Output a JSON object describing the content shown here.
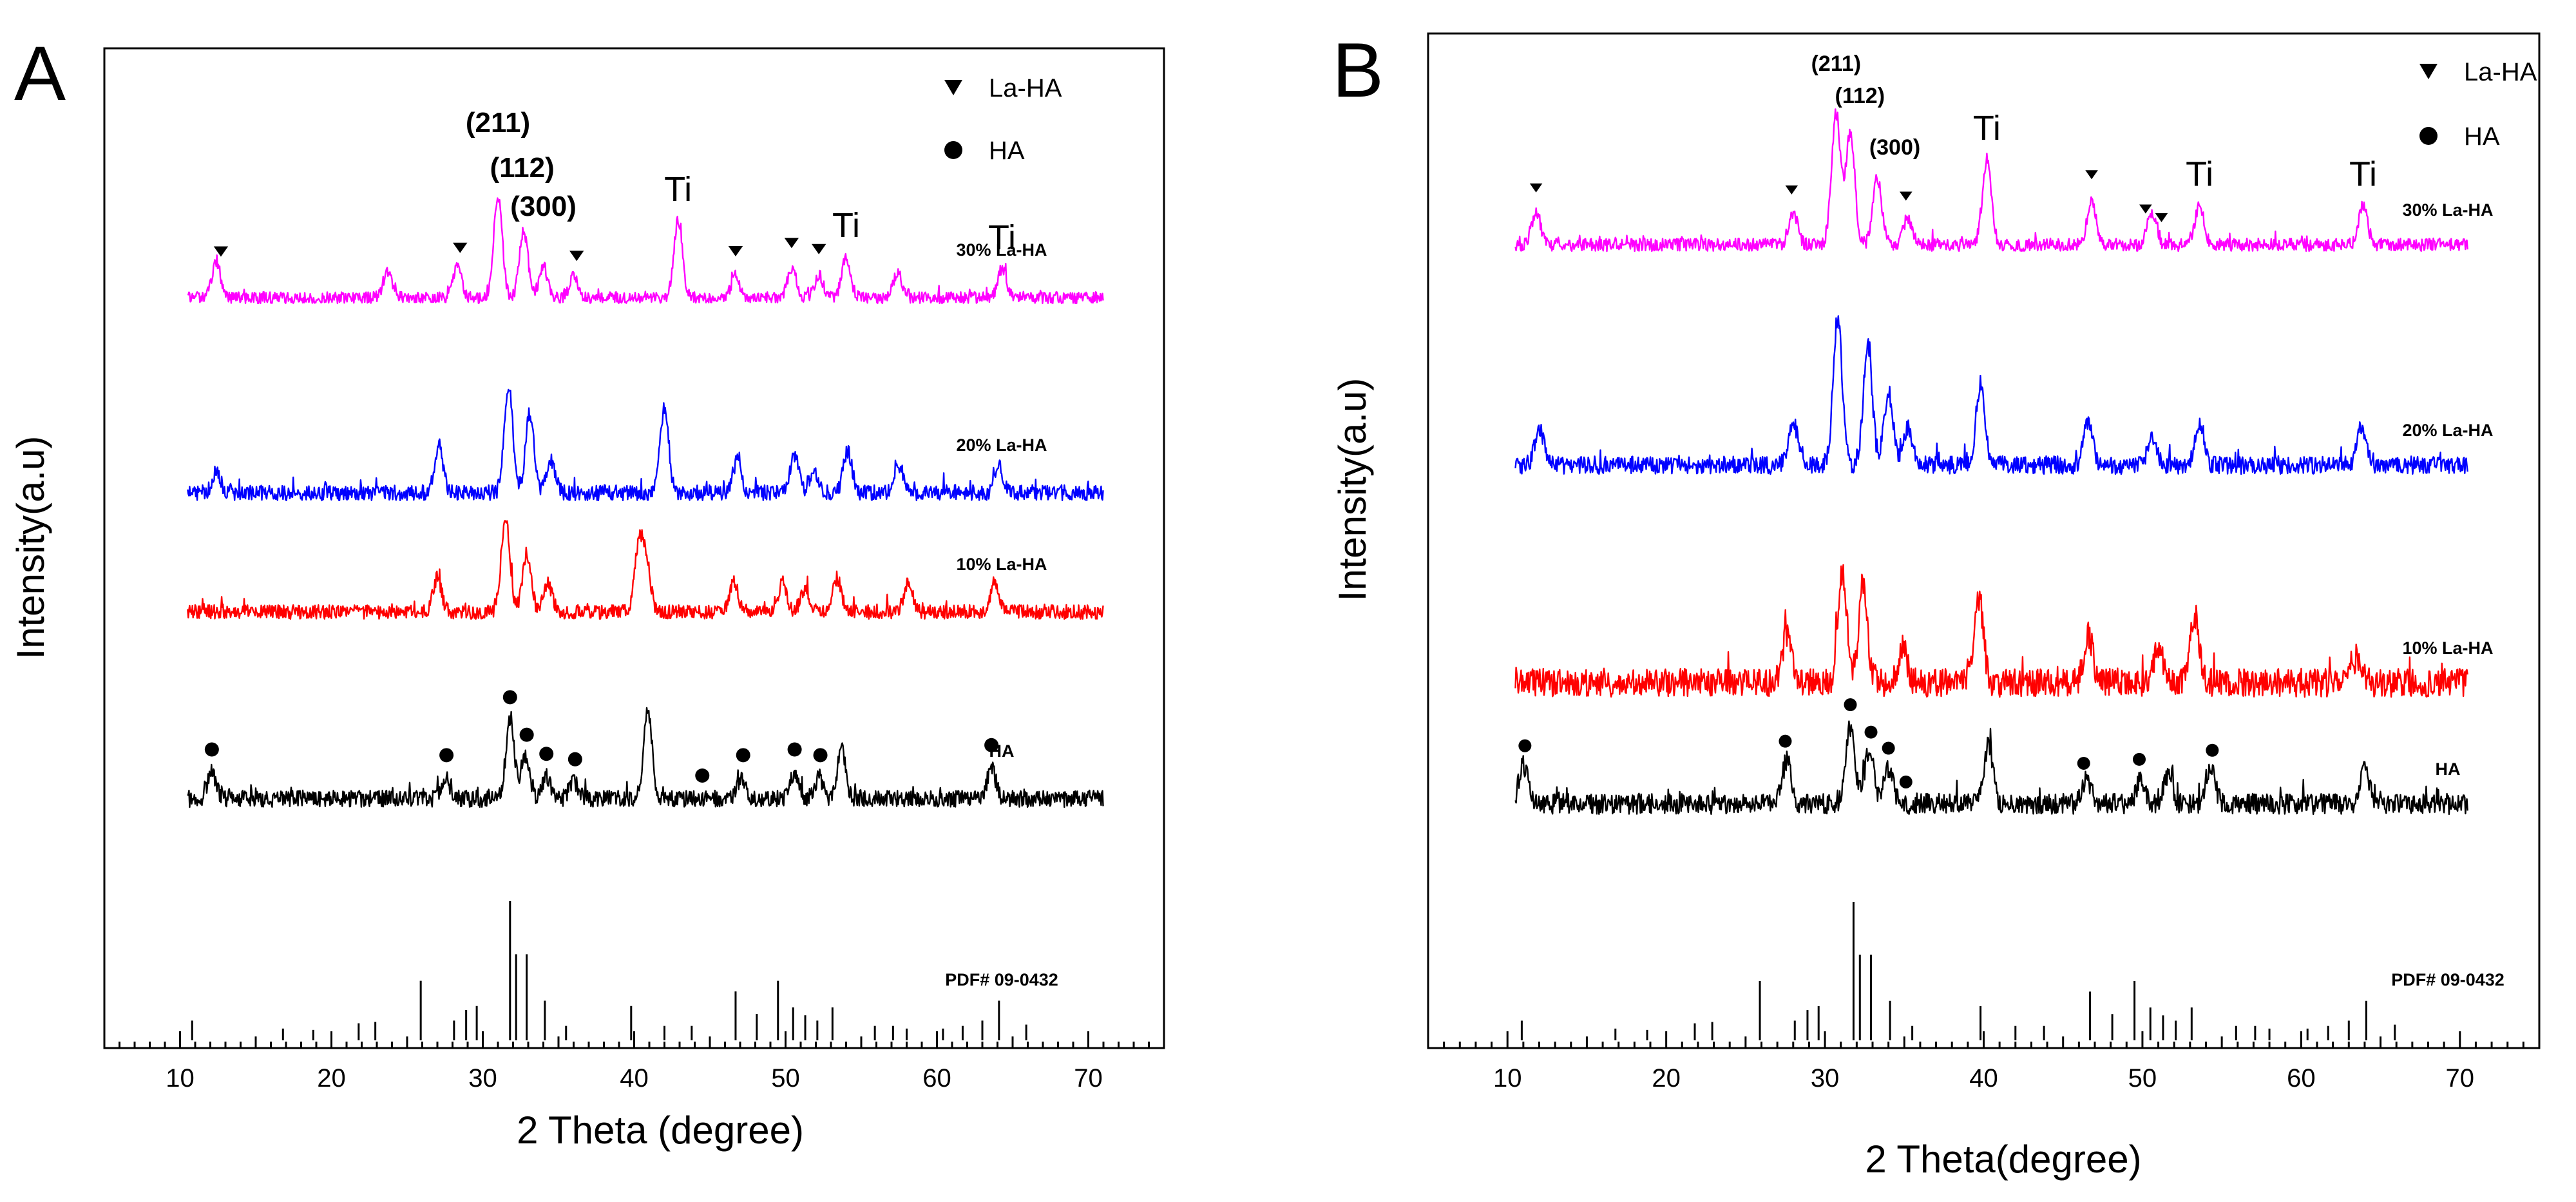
{
  "chart_data": [
    {
      "type": "line",
      "panel": "A",
      "xlabel": "2 Theta (degree)",
      "ylabel": "Intensity(a.u)",
      "xlim": [
        5,
        75
      ],
      "xticks": [
        10,
        20,
        30,
        40,
        50,
        60,
        70
      ],
      "legend": [
        {
          "marker": "triangle",
          "label": "La-HA"
        },
        {
          "marker": "circle",
          "label": "HA"
        }
      ],
      "series": [
        {
          "name": "30% La-HA",
          "color": "#ff00ff",
          "x_range": [
            10.5,
            71
          ],
          "peaks": [
            [
              12.4,
              0.35
            ],
            [
              23.7,
              0.25
            ],
            [
              28.3,
              0.3
            ],
            [
              31.0,
              1.0
            ],
            [
              32.7,
              0.65
            ],
            [
              34.0,
              0.3
            ],
            [
              36.0,
              0.2
            ],
            [
              42.9,
              0.75
            ],
            [
              46.7,
              0.2
            ],
            [
              50.4,
              0.28
            ],
            [
              52.2,
              0.22
            ],
            [
              54.0,
              0.4
            ],
            [
              57.4,
              0.25
            ],
            [
              64.3,
              0.28
            ]
          ],
          "triangle_markers": [
            12.7,
            28.5,
            36.2,
            46.7,
            50.4,
            52.2
          ]
        },
        {
          "name": "20% La-HA",
          "color": "#0000ff",
          "x_range": [
            10.5,
            71
          ],
          "peaks": [
            [
              12.4,
              0.2
            ],
            [
              27.1,
              0.45
            ],
            [
              31.7,
              1.0
            ],
            [
              33.1,
              0.75
            ],
            [
              34.5,
              0.3
            ],
            [
              42.0,
              0.8
            ],
            [
              46.8,
              0.3
            ],
            [
              50.6,
              0.35
            ],
            [
              51.9,
              0.2
            ],
            [
              54.1,
              0.4
            ],
            [
              57.5,
              0.25
            ],
            [
              64.1,
              0.25
            ]
          ]
        },
        {
          "name": "10% La-HA",
          "color": "#ff0000",
          "x_range": [
            10.5,
            71
          ],
          "peaks": [
            [
              27.0,
              0.35
            ],
            [
              31.5,
              1.0
            ],
            [
              32.9,
              0.6
            ],
            [
              34.3,
              0.3
            ],
            [
              40.3,
              0.65
            ],
            [
              40.8,
              0.5
            ],
            [
              46.6,
              0.3
            ],
            [
              49.8,
              0.3
            ],
            [
              51.3,
              0.25
            ],
            [
              53.4,
              0.35
            ],
            [
              58.1,
              0.3
            ],
            [
              63.8,
              0.3
            ]
          ]
        },
        {
          "name": "HA",
          "color": "#000000",
          "x_range": [
            10.5,
            71
          ],
          "peaks": [
            [
              12.1,
              0.3
            ],
            [
              27.5,
              0.25
            ],
            [
              31.8,
              0.9
            ],
            [
              32.8,
              0.5
            ],
            [
              34.2,
              0.25
            ],
            [
              36.0,
              0.2
            ],
            [
              40.9,
              1.0
            ],
            [
              47.1,
              0.25
            ],
            [
              50.6,
              0.3
            ],
            [
              52.2,
              0.25
            ],
            [
              53.7,
              0.55
            ],
            [
              63.6,
              0.35
            ]
          ],
          "circle_markers": [
            12.1,
            27.6,
            31.8,
            32.9,
            34.2,
            36.1,
            44.5,
            47.2,
            50.6,
            52.3,
            63.6
          ]
        }
      ],
      "reference": {
        "label": "PDF# 09-0432",
        "lines": [
          [
            10.8,
            0.1
          ],
          [
            16.8,
            0.04
          ],
          [
            18.8,
            0.03
          ],
          [
            21.8,
            0.08
          ],
          [
            22.9,
            0.09
          ],
          [
            25.9,
            0.4
          ],
          [
            28.1,
            0.1
          ],
          [
            28.9,
            0.18
          ],
          [
            29.6,
            0.21
          ],
          [
            31.8,
            1.0
          ],
          [
            32.2,
            0.6
          ],
          [
            32.9,
            0.6
          ],
          [
            34.1,
            0.25
          ],
          [
            35.5,
            0.06
          ],
          [
            39.8,
            0.21
          ],
          [
            42.0,
            0.06
          ],
          [
            43.8,
            0.06
          ],
          [
            46.7,
            0.32
          ],
          [
            48.1,
            0.15
          ],
          [
            49.5,
            0.4
          ],
          [
            50.5,
            0.2
          ],
          [
            51.3,
            0.14
          ],
          [
            52.1,
            0.1
          ],
          [
            53.1,
            0.2
          ],
          [
            55.9,
            0.06
          ],
          [
            57.1,
            0.06
          ],
          [
            58.0,
            0.04
          ],
          [
            60.4,
            0.04
          ],
          [
            61.7,
            0.06
          ],
          [
            63.0,
            0.1
          ],
          [
            64.1,
            0.25
          ],
          [
            65.9,
            0.07
          ]
        ]
      },
      "annotations": [
        {
          "text": "(211)",
          "x": 31.0,
          "kind": "hkl"
        },
        {
          "text": "(112)",
          "x": 32.6,
          "kind": "hkl"
        },
        {
          "text": "(300)",
          "x": 34.0,
          "kind": "hkl"
        },
        {
          "text": "Ti",
          "x": 42.9,
          "kind": "ti"
        },
        {
          "text": "Ti",
          "x": 54.0,
          "kind": "ti"
        },
        {
          "text": "Ti",
          "x": 64.3,
          "kind": "ti"
        }
      ]
    },
    {
      "type": "line",
      "panel": "B",
      "xlabel": "2 Theta(degree)",
      "ylabel": "Intensity(a.u)",
      "xlim": [
        5,
        75
      ],
      "xticks": [
        10,
        20,
        30,
        40,
        50,
        60,
        70
      ],
      "legend": [
        {
          "marker": "triangle",
          "label": "La-HA"
        },
        {
          "marker": "circle",
          "label": "HA"
        }
      ],
      "series": [
        {
          "name": "30% La-HA",
          "color": "#ff00ff",
          "x_range": [
            10.5,
            70.5
          ],
          "peaks": [
            [
              11.8,
              0.25
            ],
            [
              28.0,
              0.25
            ],
            [
              30.7,
              1.0
            ],
            [
              31.6,
              0.85
            ],
            [
              33.3,
              0.5
            ],
            [
              35.2,
              0.2
            ],
            [
              40.2,
              0.65
            ],
            [
              46.8,
              0.35
            ],
            [
              50.6,
              0.25
            ],
            [
              53.6,
              0.3
            ],
            [
              63.9,
              0.3
            ]
          ],
          "triangle_markers": [
            11.8,
            27.9,
            35.1,
            46.8,
            50.2,
            51.2
          ]
        },
        {
          "name": "20% La-HA",
          "color": "#0000ff",
          "x_range": [
            10.5,
            70.5
          ],
          "peaks": [
            [
              12.0,
              0.25
            ],
            [
              28.0,
              0.3
            ],
            [
              30.8,
              1.0
            ],
            [
              32.7,
              0.8
            ],
            [
              34.0,
              0.5
            ],
            [
              35.2,
              0.25
            ],
            [
              39.8,
              0.55
            ],
            [
              46.6,
              0.3
            ],
            [
              50.6,
              0.2
            ],
            [
              53.6,
              0.3
            ],
            [
              63.8,
              0.25
            ]
          ]
        },
        {
          "name": "10% La-HA",
          "color": "#ff0000",
          "x_range": [
            10.5,
            70.5
          ],
          "peaks": [
            [
              27.6,
              0.4
            ],
            [
              31.1,
              0.9
            ],
            [
              32.4,
              0.8
            ],
            [
              34.9,
              0.3
            ],
            [
              39.7,
              0.7
            ],
            [
              46.6,
              0.4
            ],
            [
              51.0,
              0.3
            ],
            [
              53.3,
              0.55
            ],
            [
              63.5,
              0.2
            ]
          ]
        },
        {
          "name": "HA",
          "color": "#000000",
          "x_range": [
            10.5,
            70.5
          ],
          "peaks": [
            [
              11.0,
              0.4
            ],
            [
              27.6,
              0.45
            ],
            [
              31.6,
              0.8
            ],
            [
              32.8,
              0.55
            ],
            [
              34.0,
              0.35
            ],
            [
              40.3,
              0.6
            ],
            [
              46.5,
              0.25
            ],
            [
              49.9,
              0.25
            ],
            [
              51.6,
              0.3
            ],
            [
              54.3,
              0.35
            ],
            [
              64.0,
              0.35
            ]
          ],
          "circle_markers": [
            11.1,
            27.5,
            31.6,
            32.9,
            34.0,
            35.1,
            46.3,
            49.8,
            54.4
          ]
        }
      ],
      "reference": {
        "label": "PDF# 09-0432",
        "lines": [
          [
            10.9,
            0.1
          ],
          [
            16.8,
            0.04
          ],
          [
            18.8,
            0.03
          ],
          [
            21.8,
            0.08
          ],
          [
            22.9,
            0.09
          ],
          [
            25.9,
            0.4
          ],
          [
            28.1,
            0.1
          ],
          [
            28.9,
            0.18
          ],
          [
            29.6,
            0.21
          ],
          [
            31.8,
            1.0
          ],
          [
            32.2,
            0.6
          ],
          [
            32.9,
            0.6
          ],
          [
            34.1,
            0.25
          ],
          [
            35.5,
            0.06
          ],
          [
            39.8,
            0.21
          ],
          [
            42.0,
            0.06
          ],
          [
            43.8,
            0.06
          ],
          [
            46.7,
            0.32
          ],
          [
            48.1,
            0.15
          ],
          [
            49.5,
            0.4
          ],
          [
            50.5,
            0.2
          ],
          [
            51.3,
            0.14
          ],
          [
            52.1,
            0.1
          ],
          [
            53.1,
            0.2
          ],
          [
            55.9,
            0.06
          ],
          [
            57.1,
            0.06
          ],
          [
            58.0,
            0.04
          ],
          [
            60.4,
            0.04
          ],
          [
            61.7,
            0.06
          ],
          [
            63.0,
            0.1
          ],
          [
            64.1,
            0.25
          ],
          [
            65.9,
            0.07
          ]
        ]
      },
      "annotations": [
        {
          "text": "(211)",
          "x": 30.7,
          "kind": "hkl"
        },
        {
          "text": "(112)",
          "x": 32.2,
          "kind": "hkl"
        },
        {
          "text": "(300)",
          "x": 34.4,
          "kind": "hkl"
        },
        {
          "text": "Ti",
          "x": 40.2,
          "kind": "ti"
        },
        {
          "text": "Ti",
          "x": 53.6,
          "kind": "ti"
        },
        {
          "text": "Ti",
          "x": 63.9,
          "kind": "ti"
        }
      ]
    }
  ]
}
